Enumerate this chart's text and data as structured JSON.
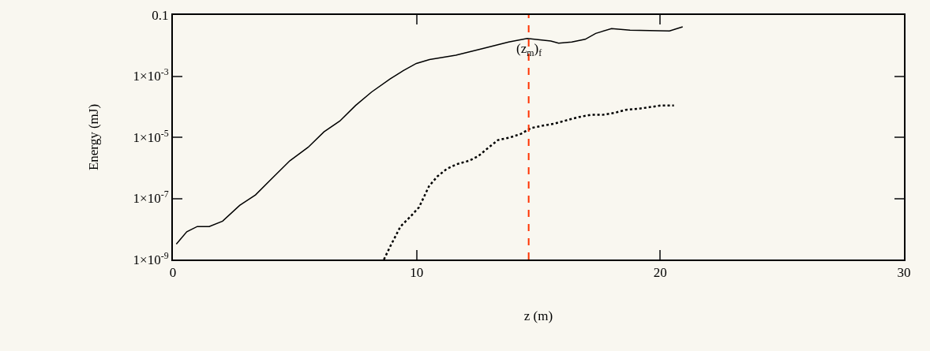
{
  "chart_data": {
    "type": "line",
    "xlabel": "z (m)",
    "ylabel": "Energy (mJ)",
    "log": "y",
    "xlim": [
      0,
      30
    ],
    "xticks": [
      0,
      10,
      20,
      30
    ],
    "ylim": [
      1e-09,
      0.1
    ],
    "yticks": [
      {
        "value": 1e-09,
        "label": "1×10$^{-9}$"
      },
      {
        "value": 1e-07,
        "label": "1×10$^{-7}$"
      },
      {
        "value": 1e-05,
        "label": "1×10$^{-5}$"
      },
      {
        "value": 0.001,
        "label": "1×10$^{-3}$"
      },
      0.1
    ],
    "series": [
      {
        "color": "#000000",
        "line_style": "solid",
        "x": [
          0.14,
          0.57,
          1.0,
          1.49,
          2.04,
          2.74,
          3.39,
          4.04,
          4.8,
          5.55,
          6.2,
          6.85,
          7.5,
          8.15,
          8.91,
          9.45,
          9.99,
          10.53,
          11.61,
          12.69,
          13.78,
          14.54,
          15.51,
          15.83,
          16.37,
          16.92,
          17.35,
          18.0,
          18.76,
          20.38,
          20.92
        ],
        "values": [
          3.2e-09,
          8.1e-09,
          1.2e-08,
          1.2e-08,
          1.8e-08,
          5.9e-08,
          1.3e-07,
          4.3e-07,
          1.7e-06,
          4.7e-06,
          1.5e-05,
          3.4e-05,
          0.00011,
          0.0003,
          0.00081,
          0.0015,
          0.0026,
          0.0035,
          0.0048,
          0.0079,
          0.013,
          0.017,
          0.014,
          0.012,
          0.013,
          0.016,
          0.025,
          0.036,
          0.032,
          0.03,
          0.041
        ]
      },
      {
        "color": "#000000",
        "line_style": "dotted",
        "x": [
          8.66,
          8.91,
          9.34,
          9.74,
          10.1,
          10.51,
          10.85,
          11.23,
          11.63,
          12.15,
          12.53,
          12.94,
          13.34,
          13.83,
          14.29,
          14.7,
          15.18,
          15.67,
          16.16,
          16.68,
          17.13,
          17.62,
          18.1,
          18.59,
          19.08,
          19.62,
          20.05,
          20.56
        ],
        "values": [
          1e-09,
          2.6e-09,
          1.2e-08,
          2.5e-08,
          5.1e-08,
          2.5e-07,
          5.2e-07,
          9.1e-07,
          1.3e-06,
          1.7e-06,
          2.4e-06,
          4.5e-06,
          8.1e-06,
          9.8e-06,
          1.3e-05,
          2e-05,
          2.4e-05,
          2.8e-05,
          3.6e-05,
          4.6e-05,
          5.4e-05,
          5.4e-05,
          6.2e-05,
          7.9e-05,
          8.5e-05,
          9.8e-05,
          0.00011,
          0.00011
        ]
      }
    ],
    "ref_lines": [
      {
        "axis": "x",
        "value": 14.6,
        "label": "(z$_{m}$)$_{f}$",
        "color": "#ff3300",
        "line_style": "dashed"
      }
    ]
  }
}
